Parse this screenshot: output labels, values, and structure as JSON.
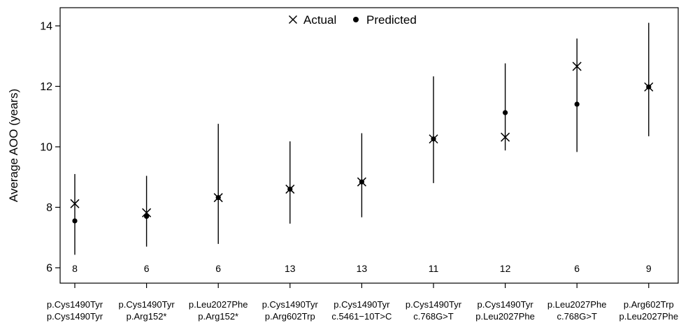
{
  "chart_data": {
    "type": "scatter",
    "ylabel": "Average AOO (years)",
    "xlabel": "",
    "ylim": [
      5.5,
      14.6
    ],
    "yticks": [
      6,
      8,
      10,
      12,
      14
    ],
    "grid": false,
    "legend": {
      "placement": "top-center",
      "entries": [
        {
          "name": "Actual",
          "marker": "x"
        },
        {
          "name": "Predicted",
          "marker": "filled-circle"
        }
      ]
    },
    "categories": [
      [
        "p.Cys1490Tyr",
        "p.Cys1490Tyr"
      ],
      [
        "p.Cys1490Tyr",
        "p.Arg152*"
      ],
      [
        "p.Leu2027Phe",
        "p.Arg152*"
      ],
      [
        "p.Cys1490Tyr",
        "p.Arg602Trp"
      ],
      [
        "p.Cys1490Tyr",
        "c.5461−10T>C"
      ],
      [
        "p.Cys1490Tyr",
        "c.768G>T"
      ],
      [
        "p.Cys1490Tyr",
        "p.Leu2027Phe"
      ],
      [
        "p.Leu2027Phe",
        "c.768G>T"
      ],
      [
        "p.Arg602Trp",
        "p.Leu2027Phe"
      ]
    ],
    "n_labels": [
      "8",
      "6",
      "6",
      "13",
      "13",
      "11",
      "12",
      "6",
      "9"
    ],
    "series": [
      {
        "name": "Actual",
        "values": [
          8.12,
          7.82,
          8.32,
          8.6,
          8.84,
          10.26,
          10.32,
          12.66,
          11.98
        ]
      },
      {
        "name": "Predicted",
        "values": [
          7.55,
          7.7,
          8.32,
          8.6,
          8.84,
          10.26,
          11.13,
          11.41,
          11.98
        ]
      }
    ],
    "error_bars": {
      "lower": [
        6.43,
        6.7,
        6.79,
        7.46,
        7.67,
        8.8,
        9.88,
        9.83,
        10.35
      ],
      "upper": [
        9.1,
        9.04,
        10.76,
        10.18,
        10.45,
        12.33,
        12.76,
        13.58,
        14.1
      ]
    }
  }
}
